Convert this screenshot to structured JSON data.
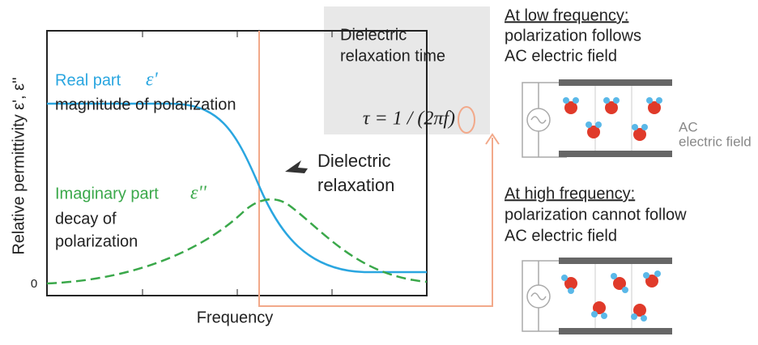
{
  "plot": {
    "y_axis_label": "Relative permittivity ε', ε''",
    "y_zero_label": "0",
    "x_axis_label": "Frequency",
    "real_part": {
      "label": "Real part",
      "symbol": "ε'",
      "description": "magnitude of polarization"
    },
    "imaginary_part": {
      "label": "Imaginary part",
      "symbol": "ε''",
      "description_lines": [
        "decay of",
        "polarization"
      ]
    },
    "relaxation_label_lines": [
      "Dielectric",
      "relaxation"
    ],
    "relaxation_time_box": {
      "lines": [
        "Dielectric",
        "relaxation time"
      ],
      "formula": "τ = 1 / (2πf)"
    }
  },
  "low_frequency": {
    "heading": "At low frequency:",
    "lines": [
      "polarization follows",
      "AC electric field"
    ],
    "field_label_lines": [
      "AC",
      "electric field"
    ]
  },
  "high_frequency": {
    "heading": "At high frequency:",
    "lines": [
      "polarization cannot follow",
      "AC electric field"
    ]
  }
}
